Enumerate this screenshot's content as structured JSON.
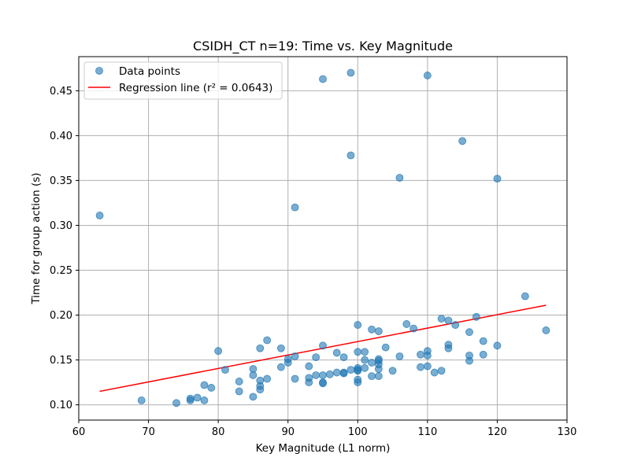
{
  "chart_data": {
    "type": "scatter",
    "title": "CSIDH_CT n=19: Time vs. Key Magnitude",
    "xlabel": "Key Magnitude (L1 norm)",
    "ylabel": "Time for group action (s)",
    "xlim": [
      60,
      130
    ],
    "ylim": [
      0.083,
      0.488
    ],
    "xticks": [
      60,
      70,
      80,
      90,
      100,
      110,
      120,
      130
    ],
    "xtick_labels": [
      "60",
      "70",
      "80",
      "90",
      "100",
      "110",
      "120",
      "130"
    ],
    "yticks": [
      0.1,
      0.15,
      0.2,
      0.25,
      0.3,
      0.35,
      0.4,
      0.45
    ],
    "ytick_labels": [
      "0.10",
      "0.15",
      "0.20",
      "0.25",
      "0.30",
      "0.35",
      "0.40",
      "0.45"
    ],
    "grid": true,
    "legend_position": "upper-left",
    "series": [
      {
        "name": "Data points",
        "color": "#1f77b4",
        "points": [
          [
            63,
            0.311
          ],
          [
            69,
            0.105
          ],
          [
            74,
            0.102
          ],
          [
            76,
            0.105
          ],
          [
            76,
            0.107
          ],
          [
            77,
            0.108
          ],
          [
            78,
            0.105
          ],
          [
            78,
            0.122
          ],
          [
            79,
            0.119
          ],
          [
            80,
            0.16
          ],
          [
            81,
            0.139
          ],
          [
            83,
            0.115
          ],
          [
            83,
            0.126
          ],
          [
            85,
            0.109
          ],
          [
            85,
            0.133
          ],
          [
            85,
            0.14
          ],
          [
            86,
            0.163
          ],
          [
            86,
            0.127
          ],
          [
            86,
            0.121
          ],
          [
            86,
            0.117
          ],
          [
            87,
            0.129
          ],
          [
            87,
            0.172
          ],
          [
            89,
            0.142
          ],
          [
            89,
            0.163
          ],
          [
            90,
            0.151
          ],
          [
            90,
            0.147
          ],
          [
            91,
            0.32
          ],
          [
            91,
            0.154
          ],
          [
            91,
            0.129
          ],
          [
            93,
            0.143
          ],
          [
            93,
            0.13
          ],
          [
            93,
            0.125
          ],
          [
            94,
            0.133
          ],
          [
            94,
            0.153
          ],
          [
            95,
            0.463
          ],
          [
            95,
            0.166
          ],
          [
            95,
            0.133
          ],
          [
            95,
            0.125
          ],
          [
            95,
            0.124
          ],
          [
            96,
            0.134
          ],
          [
            97,
            0.158
          ],
          [
            97,
            0.136
          ],
          [
            98,
            0.153
          ],
          [
            98,
            0.136
          ],
          [
            98,
            0.135
          ],
          [
            99,
            0.47
          ],
          [
            99,
            0.378
          ],
          [
            99,
            0.139
          ],
          [
            100,
            0.189
          ],
          [
            100,
            0.159
          ],
          [
            100,
            0.141
          ],
          [
            100,
            0.138
          ],
          [
            100,
            0.139
          ],
          [
            100,
            0.128
          ],
          [
            100,
            0.125
          ],
          [
            101,
            0.159
          ],
          [
            101,
            0.15
          ],
          [
            101,
            0.141
          ],
          [
            102,
            0.184
          ],
          [
            102,
            0.147
          ],
          [
            102,
            0.132
          ],
          [
            103,
            0.182
          ],
          [
            103,
            0.151
          ],
          [
            103,
            0.149
          ],
          [
            103,
            0.145
          ],
          [
            103,
            0.14
          ],
          [
            103,
            0.132
          ],
          [
            104,
            0.164
          ],
          [
            105,
            0.138
          ],
          [
            106,
            0.353
          ],
          [
            106,
            0.154
          ],
          [
            107,
            0.19
          ],
          [
            108,
            0.185
          ],
          [
            109,
            0.156
          ],
          [
            109,
            0.142
          ],
          [
            110,
            0.467
          ],
          [
            110,
            0.16
          ],
          [
            110,
            0.155
          ],
          [
            110,
            0.143
          ],
          [
            111,
            0.136
          ],
          [
            112,
            0.196
          ],
          [
            112,
            0.138
          ],
          [
            113,
            0.194
          ],
          [
            113,
            0.167
          ],
          [
            113,
            0.163
          ],
          [
            114,
            0.189
          ],
          [
            115,
            0.394
          ],
          [
            116,
            0.181
          ],
          [
            116,
            0.155
          ],
          [
            116,
            0.149
          ],
          [
            117,
            0.198
          ],
          [
            118,
            0.171
          ],
          [
            118,
            0.156
          ],
          [
            120,
            0.352
          ],
          [
            120,
            0.166
          ],
          [
            124,
            0.221
          ],
          [
            127,
            0.183
          ]
        ]
      },
      {
        "name": "Regression line (r² = 0.0643)",
        "color": "#ff0000",
        "line": [
          [
            63,
            0.115
          ],
          [
            127,
            0.211
          ]
        ]
      }
    ]
  }
}
